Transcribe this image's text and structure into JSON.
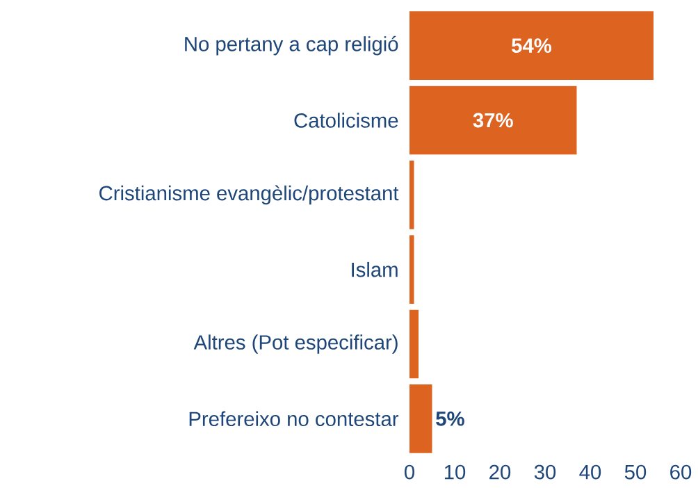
{
  "chart_data": {
    "type": "bar",
    "orientation": "horizontal",
    "categories": [
      "No pertany a cap religió",
      "Catolicisme",
      "Cristianisme evangèlic/protestant",
      "Islam",
      "Altres (Pot especificar)",
      "Prefereixo no contestar"
    ],
    "values": [
      54,
      37,
      1,
      1,
      2,
      5
    ],
    "value_labels": [
      "54%",
      "37%",
      null,
      null,
      null,
      "5%"
    ],
    "color": "#dd6321",
    "xlim": [
      0,
      60
    ],
    "xticks": [
      0,
      10,
      20,
      30,
      40,
      50,
      60
    ]
  }
}
